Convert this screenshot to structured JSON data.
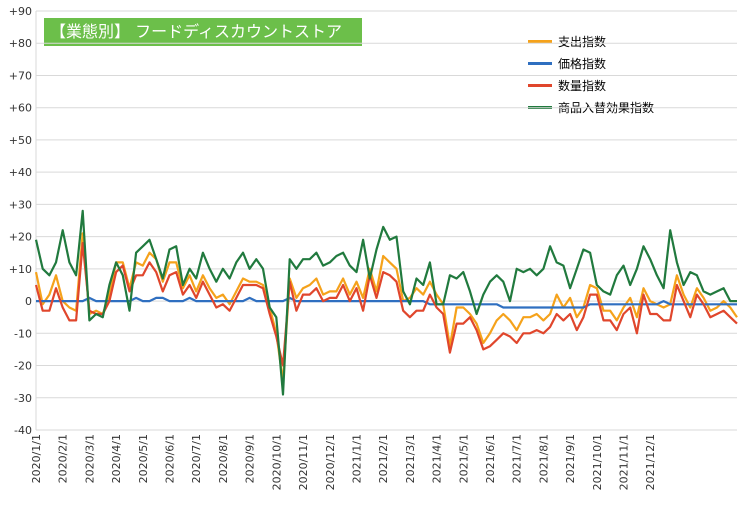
{
  "chart_data": {
    "type": "line",
    "title": "【業態別】 フードディスカウントストア",
    "ylim": [
      -40,
      90
    ],
    "yticks": [
      "+90",
      "+80",
      "+70",
      "+60",
      "+50",
      "+40",
      "+30",
      "+20",
      "+10",
      "0",
      "-10",
      "-20",
      "-30",
      "-40"
    ],
    "ytick_values": [
      90,
      80,
      70,
      60,
      50,
      40,
      30,
      20,
      10,
      0,
      -10,
      -20,
      -30,
      -40
    ],
    "grid": true,
    "legend_position": "top-right",
    "x_tick_labels": [
      "2020/1/1",
      "2020/2/1",
      "2020/3/1",
      "2020/4/1",
      "2020/5/1",
      "2020/6/1",
      "2020/7/1",
      "2020/8/1",
      "2020/9/1",
      "2020/10/1",
      "2020/11/1",
      "2020/12/1",
      "2021/1/1",
      "2021/2/1",
      "2021/3/1",
      "2021/4/1",
      "2021/5/1",
      "2021/6/1",
      "2021/7/1",
      "2021/8/1",
      "2021/9/1",
      "2021/10/1",
      "2021/11/1",
      "2021/12/1"
    ],
    "points_per_month": 4,
    "series": [
      {
        "name": "支出指数",
        "color": "#f5a21b",
        "values": [
          9,
          -1,
          2,
          8,
          0,
          -2,
          -3,
          21,
          -4,
          -3,
          -4,
          2,
          12,
          12,
          4,
          12,
          11,
          15,
          13,
          6,
          12,
          12,
          4,
          8,
          3,
          8,
          4,
          1,
          2,
          -1,
          3,
          7,
          6,
          6,
          5,
          -2,
          -10,
          -25,
          7,
          1,
          4,
          5,
          7,
          2,
          3,
          3,
          7,
          2,
          6,
          1,
          10,
          3,
          14,
          12,
          10,
          0,
          1,
          4,
          2,
          6,
          2,
          -1,
          -14,
          -2,
          -2,
          -4,
          -7,
          -13,
          -10,
          -6,
          -4,
          -6,
          -9,
          -5,
          -5,
          -4,
          -6,
          -4,
          2,
          -2,
          1,
          -5,
          -2,
          5,
          4,
          -3,
          -3,
          -6,
          -2,
          1,
          -5,
          4,
          0,
          -1,
          -2,
          -1,
          8,
          2,
          -2,
          4,
          1,
          -3,
          -2,
          0,
          -2,
          -5
        ]
      },
      {
        "name": "価格指数",
        "color": "#2f6fc0",
        "values": [
          0,
          0,
          0,
          0,
          0,
          0,
          0,
          0,
          1,
          0,
          0,
          0,
          0,
          0,
          0,
          1,
          0,
          0,
          1,
          1,
          0,
          0,
          0,
          1,
          0,
          0,
          0,
          0,
          0,
          0,
          0,
          0,
          1,
          0,
          0,
          0,
          0,
          0,
          1,
          0,
          0,
          0,
          0,
          0,
          0,
          0,
          0,
          0,
          0,
          0,
          0,
          0,
          0,
          0,
          0,
          0,
          0,
          0,
          0,
          -1,
          -1,
          -1,
          -1,
          -1,
          -1,
          -1,
          -1,
          -1,
          -1,
          -1,
          -2,
          -2,
          -2,
          -2,
          -2,
          -2,
          -2,
          -2,
          -2,
          -2,
          -2,
          -2,
          -2,
          -1,
          -1,
          -1,
          -1,
          -1,
          -1,
          -1,
          -1,
          -1,
          -1,
          -1,
          0,
          -1,
          -1,
          -1,
          -1,
          -1,
          -1,
          -1,
          -1,
          -1,
          -1,
          -1
        ]
      },
      {
        "name": "数量指数",
        "color": "#e0462c",
        "values": [
          5,
          -3,
          -3,
          4,
          -2,
          -6,
          -6,
          18,
          -3,
          -4,
          -4,
          0,
          9,
          11,
          3,
          8,
          8,
          12,
          9,
          3,
          8,
          9,
          2,
          5,
          1,
          6,
          2,
          -2,
          -1,
          -3,
          1,
          5,
          5,
          5,
          4,
          -4,
          -11,
          -20,
          6,
          -3,
          2,
          2,
          4,
          0,
          1,
          1,
          5,
          0,
          4,
          -3,
          8,
          1,
          9,
          8,
          6,
          -3,
          -5,
          -3,
          -3,
          2,
          -2,
          -4,
          -16,
          -7,
          -7,
          -5,
          -9,
          -15,
          -14,
          -12,
          -10,
          -11,
          -13,
          -10,
          -10,
          -9,
          -10,
          -8,
          -4,
          -6,
          -4,
          -9,
          -5,
          2,
          2,
          -6,
          -6,
          -9,
          -4,
          -2,
          -10,
          2,
          -4,
          -4,
          -6,
          -6,
          5,
          0,
          -5,
          2,
          -1,
          -5,
          -4,
          -3,
          -5,
          -7
        ]
      },
      {
        "name": "商品入替効果指数",
        "color": "#217a3e",
        "values": [
          19,
          10,
          8,
          12,
          22,
          12,
          8,
          28,
          -6,
          -4,
          -5,
          5,
          12,
          8,
          -3,
          15,
          17,
          19,
          13,
          7,
          16,
          17,
          5,
          10,
          7,
          15,
          10,
          6,
          10,
          7,
          12,
          15,
          10,
          13,
          10,
          -2,
          -5,
          -29,
          13,
          10,
          13,
          13,
          15,
          11,
          12,
          14,
          15,
          11,
          9,
          19,
          7,
          16,
          23,
          19,
          20,
          3,
          -1,
          7,
          5,
          12,
          -1,
          -1,
          8,
          7,
          9,
          3,
          -4,
          2,
          6,
          8,
          6,
          0,
          10,
          9,
          10,
          8,
          10,
          17,
          12,
          11,
          4,
          10,
          16,
          15,
          5,
          3,
          2,
          8,
          11,
          5,
          10,
          17,
          13,
          8,
          4,
          22,
          12,
          5,
          9,
          8,
          3,
          2,
          3,
          4,
          0,
          0
        ]
      }
    ]
  }
}
